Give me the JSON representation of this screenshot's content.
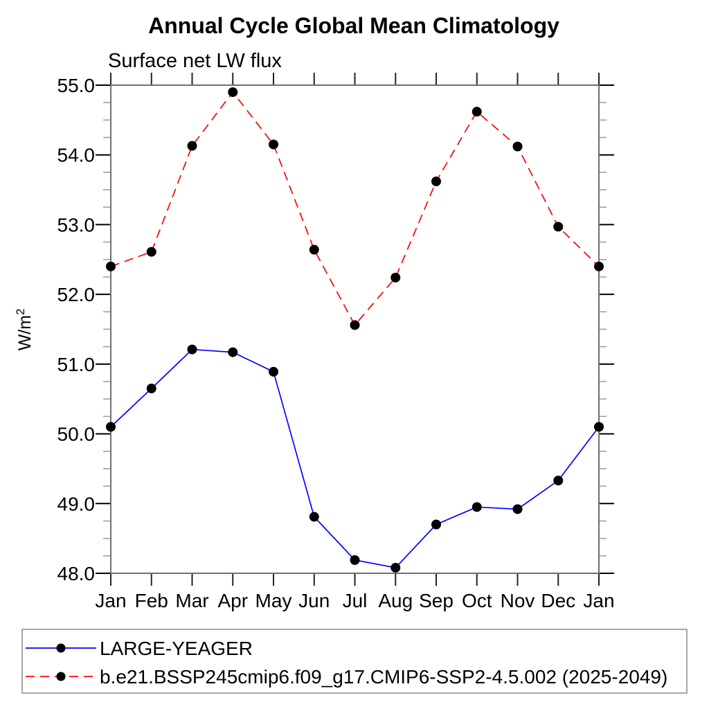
{
  "figure": {
    "title": "Annual Cycle Global Mean Climatology",
    "subtitle": "Surface net LW flux",
    "ylabel_base": "W/m",
    "ylabel_exponent": "2"
  },
  "chart_data": {
    "type": "line",
    "title": "Annual Cycle Global Mean Climatology",
    "subtitle": "Surface net LW flux",
    "ylabel": "W/m²",
    "xlabel": "",
    "categories": [
      "Jan",
      "Feb",
      "Mar",
      "Apr",
      "May",
      "Jun",
      "Jul",
      "Aug",
      "Sep",
      "Oct",
      "Nov",
      "Dec",
      "Jan"
    ],
    "ylim": [
      48.0,
      55.0
    ],
    "ytick_labels": [
      "48.0",
      "49.0",
      "50.0",
      "51.0",
      "52.0",
      "53.0",
      "54.0",
      "55.0"
    ],
    "yminor_step": 0.25,
    "grid": false,
    "legend_position": "bottom-left",
    "series": [
      {
        "name": "LARGE-YEAGER",
        "color": "#0000ff",
        "line_style": "solid",
        "marker": "filled-circle",
        "marker_color": "#000000",
        "values": [
          50.1,
          50.65,
          51.21,
          51.17,
          50.89,
          48.81,
          48.19,
          48.08,
          48.7,
          48.95,
          48.92,
          49.33,
          50.1
        ]
      },
      {
        "name": "b.e21.BSSP245cmip6.f09_g17.CMIP6-SSP2-4.5.002 (2025-2049)",
        "color": "#ff0000",
        "line_style": "dashed",
        "marker": "filled-circle",
        "marker_color": "#000000",
        "values": [
          52.4,
          52.61,
          54.13,
          54.9,
          54.15,
          52.64,
          51.56,
          52.24,
          53.62,
          54.62,
          54.12,
          52.97,
          52.4
        ]
      }
    ]
  }
}
